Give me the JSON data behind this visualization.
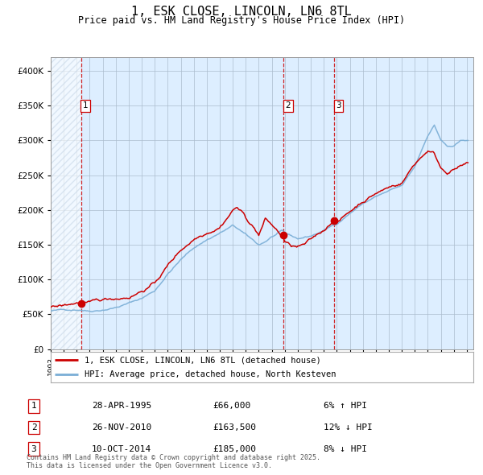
{
  "title": "1, ESK CLOSE, LINCOLN, LN6 8TL",
  "subtitle": "Price paid vs. HM Land Registry's House Price Index (HPI)",
  "transactions": [
    {
      "num": 1,
      "date_str": "28-APR-1995",
      "t_decimal": 1995.33,
      "price": 66000,
      "pct_str": "6% ↑ HPI"
    },
    {
      "num": 2,
      "date_str": "26-NOV-2010",
      "t_decimal": 2010.91,
      "price": 163500,
      "pct_str": "12% ↓ HPI"
    },
    {
      "num": 3,
      "date_str": "10-OCT-2014",
      "t_decimal": 2014.78,
      "price": 185000,
      "pct_str": "8% ↓ HPI"
    }
  ],
  "legend1": "1, ESK CLOSE, LINCOLN, LN6 8TL (detached house)",
  "legend2": "HPI: Average price, detached house, North Kesteven",
  "footer": "Contains HM Land Registry data © Crown copyright and database right 2025.\nThis data is licensed under the Open Government Licence v3.0.",
  "red_color": "#cc0000",
  "blue_color": "#7aaed6",
  "bg_color": "#ddeeff",
  "hatch_color": "#bbccdd",
  "grid_color": "#aabbcc",
  "ylim": [
    0,
    420000
  ],
  "yticks": [
    0,
    50000,
    100000,
    150000,
    200000,
    250000,
    300000,
    350000,
    400000
  ],
  "hpi_key_points": [
    [
      1993.0,
      55000
    ],
    [
      1994.0,
      56000
    ],
    [
      1995.3,
      58000
    ],
    [
      1996.0,
      57000
    ],
    [
      1997.0,
      60000
    ],
    [
      1998.0,
      64000
    ],
    [
      1999.0,
      70000
    ],
    [
      2000.0,
      77000
    ],
    [
      2001.0,
      88000
    ],
    [
      2002.0,
      113000
    ],
    [
      2003.0,
      133000
    ],
    [
      2004.0,
      150000
    ],
    [
      2005.0,
      162000
    ],
    [
      2006.0,
      172000
    ],
    [
      2007.0,
      182000
    ],
    [
      2007.5,
      176000
    ],
    [
      2008.0,
      168000
    ],
    [
      2009.0,
      153000
    ],
    [
      2009.5,
      158000
    ],
    [
      2010.0,
      165000
    ],
    [
      2010.8,
      172000
    ],
    [
      2011.0,
      168000
    ],
    [
      2012.0,
      160000
    ],
    [
      2013.0,
      164000
    ],
    [
      2014.0,
      172000
    ],
    [
      2015.0,
      182000
    ],
    [
      2016.0,
      198000
    ],
    [
      2017.0,
      212000
    ],
    [
      2018.0,
      222000
    ],
    [
      2019.0,
      229000
    ],
    [
      2020.0,
      235000
    ],
    [
      2021.0,
      262000
    ],
    [
      2022.0,
      308000
    ],
    [
      2022.5,
      323000
    ],
    [
      2023.0,
      302000
    ],
    [
      2023.5,
      292000
    ],
    [
      2024.0,
      292000
    ],
    [
      2024.5,
      298000
    ],
    [
      2025.0,
      300000
    ]
  ],
  "red_key_points": [
    [
      1993.0,
      60000
    ],
    [
      1994.0,
      61000
    ],
    [
      1995.33,
      66000
    ],
    [
      1996.0,
      63000
    ],
    [
      1997.0,
      65000
    ],
    [
      1998.0,
      68000
    ],
    [
      1999.0,
      72000
    ],
    [
      2000.0,
      82000
    ],
    [
      2001.0,
      93000
    ],
    [
      2002.0,
      118000
    ],
    [
      2003.0,
      140000
    ],
    [
      2004.0,
      157000
    ],
    [
      2005.0,
      169000
    ],
    [
      2006.0,
      180000
    ],
    [
      2007.0,
      205000
    ],
    [
      2007.3,
      210000
    ],
    [
      2007.8,
      200000
    ],
    [
      2008.0,
      193000
    ],
    [
      2008.5,
      183000
    ],
    [
      2009.0,
      170000
    ],
    [
      2009.5,
      192000
    ],
    [
      2010.0,
      183000
    ],
    [
      2010.91,
      163500
    ],
    [
      2011.0,
      158000
    ],
    [
      2011.5,
      151000
    ],
    [
      2012.0,
      149000
    ],
    [
      2012.5,
      151000
    ],
    [
      2013.0,
      156000
    ],
    [
      2013.5,
      162000
    ],
    [
      2014.0,
      169000
    ],
    [
      2014.78,
      185000
    ],
    [
      2015.0,
      182000
    ],
    [
      2016.0,
      197000
    ],
    [
      2017.0,
      213000
    ],
    [
      2018.0,
      225000
    ],
    [
      2019.0,
      233000
    ],
    [
      2020.0,
      240000
    ],
    [
      2021.0,
      268000
    ],
    [
      2022.0,
      288000
    ],
    [
      2022.5,
      283000
    ],
    [
      2023.0,
      263000
    ],
    [
      2023.5,
      258000
    ],
    [
      2024.0,
      263000
    ],
    [
      2024.5,
      266000
    ],
    [
      2025.0,
      268000
    ]
  ],
  "noise_seed": 42,
  "hpi_noise_scale": 0.25,
  "red_noise_scale": 0.35
}
